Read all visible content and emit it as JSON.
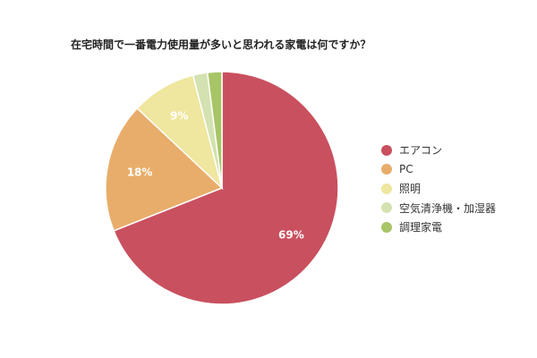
{
  "chart_data": {
    "type": "pie",
    "title": "在宅時間で一番電力使用量が多いと思われる家電は何ですか？",
    "categories": [
      "エアコン",
      "PC",
      "照明",
      "空気清浄機・加湿器",
      "調理家電"
    ],
    "values": [
      69,
      18,
      9,
      2,
      2
    ],
    "value_labels": [
      "69%",
      "18%",
      "9%",
      "",
      ""
    ],
    "colors": [
      "#c9505f",
      "#e8ad6a",
      "#efe69f",
      "#d3e2b0",
      "#a8c566"
    ],
    "legend_position": "right"
  }
}
